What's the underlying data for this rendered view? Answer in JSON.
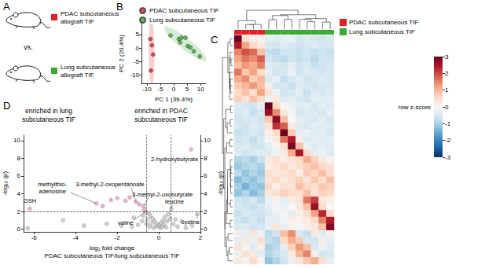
{
  "schematic": {
    "panel": "A",
    "separator": "vs.",
    "groups": [
      {
        "label": "PDAC subcutaneous\nallograft TIF",
        "color": "#e41e26"
      },
      {
        "label": "Lung subcutaneous\nallograft TIF",
        "color": "#3aaa35"
      }
    ]
  },
  "chart_data": [
    {
      "panel": "B",
      "type": "scatter",
      "xlabel": "PC 1 (39.4%)",
      "ylabel": "PC 2 (20.4%)",
      "xlim": [
        -12,
        12
      ],
      "xticks": [
        -10,
        -5,
        0,
        5,
        10
      ],
      "ylim": [
        -13,
        9
      ],
      "yticks": [
        -10,
        -5,
        0,
        5
      ],
      "grid": false,
      "legend": "top",
      "series": [
        {
          "name": "PDAC subcutaneous TIF",
          "color": "#e41e26",
          "values": [
            [
              -8.7,
              3.3
            ],
            [
              -8.1,
              1.0
            ],
            [
              -7.7,
              -2.4
            ],
            [
              -8.5,
              -8.3
            ]
          ]
        },
        {
          "name": "Lung subcutaneous TIF",
          "color": "#3aaa35",
          "values": [
            [
              -1.2,
              4.6
            ],
            [
              1.9,
              3.3
            ],
            [
              2.9,
              3.8
            ],
            [
              4.4,
              3.8
            ],
            [
              2.4,
              2.1
            ],
            [
              5.2,
              0.7
            ],
            [
              6.2,
              0.2
            ],
            [
              7.5,
              -1.2
            ],
            [
              9.7,
              -3.1
            ]
          ]
        }
      ]
    },
    {
      "panel": "C",
      "type": "heatmap",
      "legend": "right",
      "series": [
        {
          "name": "PDAC subcutaneous TIF",
          "color": "#e41e26"
        },
        {
          "name": "Lung subcutaneous TIF",
          "color": "#3aaa35"
        }
      ],
      "column_groups": [
        "PDAC subcutaneous TIF",
        "PDAC subcutaneous TIF",
        "PDAC subcutaneous TIF",
        "PDAC subcutaneous TIF",
        "Lung subcutaneous TIF",
        "Lung subcutaneous TIF",
        "Lung subcutaneous TIF",
        "Lung subcutaneous TIF",
        "Lung subcutaneous TIF",
        "Lung subcutaneous TIF",
        "Lung subcutaneous TIF",
        "Lung subcutaneous TIF",
        "Lung subcutaneous TIF"
      ],
      "colorbar": {
        "label": "row z-score",
        "range": [
          -3,
          3
        ],
        "ticks": [
          -3,
          -2,
          -1,
          0,
          1,
          2,
          3
        ]
      },
      "values": [
        [
          3.0,
          0.4,
          0.2,
          0.1,
          -0.3,
          -0.4,
          -0.3,
          -0.2,
          -0.5,
          -0.4,
          -0.5,
          -0.6,
          -0.5
        ],
        [
          2.4,
          1.2,
          0.6,
          0.3,
          -0.5,
          -0.6,
          -0.4,
          -0.5,
          -0.6,
          -0.5,
          -0.4,
          -0.5,
          -0.5
        ],
        [
          1.5,
          1.9,
          1.7,
          0.9,
          -0.7,
          -0.8,
          -0.6,
          -0.6,
          -0.7,
          -0.6,
          -0.7,
          -0.6,
          -0.7
        ],
        [
          1.2,
          1.6,
          1.4,
          1.8,
          -0.6,
          -0.7,
          -0.8,
          -0.6,
          -0.7,
          -0.6,
          -0.8,
          -0.6,
          -0.6
        ],
        [
          0.9,
          1.3,
          1.1,
          1.5,
          -0.4,
          -0.5,
          -0.6,
          -0.3,
          -0.6,
          -0.5,
          -0.7,
          -0.6,
          -0.5
        ],
        [
          1.6,
          0.8,
          1.2,
          0.6,
          -0.3,
          -0.6,
          -0.5,
          -0.2,
          -0.6,
          -0.4,
          -0.5,
          -0.6,
          -0.5
        ],
        [
          1.1,
          1.4,
          0.7,
          1.0,
          -0.4,
          -0.3,
          -0.7,
          -0.5,
          -0.4,
          -0.6,
          -0.5,
          -0.4,
          -0.5
        ],
        [
          0.8,
          1.0,
          1.3,
          0.9,
          0.2,
          -0.6,
          -0.5,
          -0.7,
          -0.4,
          -0.5,
          -0.6,
          -0.5,
          -0.5
        ],
        [
          0.6,
          0.9,
          0.5,
          1.2,
          0.4,
          -0.2,
          -0.6,
          -0.5,
          -0.3,
          -0.7,
          -0.4,
          -0.5,
          -0.4
        ],
        [
          0.7,
          0.4,
          0.9,
          0.6,
          -0.2,
          0.3,
          -0.4,
          -0.3,
          -0.5,
          -0.6,
          -0.3,
          -0.4,
          -0.3
        ],
        [
          -0.4,
          -0.5,
          -0.6,
          -0.3,
          3.0,
          0.6,
          0.1,
          -0.2,
          -0.4,
          -0.3,
          -0.5,
          -0.3,
          -0.4
        ],
        [
          -0.5,
          -0.4,
          -0.7,
          -0.5,
          2.6,
          1.4,
          0.3,
          -0.1,
          -0.5,
          -0.4,
          -0.4,
          -0.5,
          -0.3
        ],
        [
          -0.6,
          -0.5,
          -0.5,
          -0.6,
          0.8,
          2.7,
          0.9,
          0.0,
          -0.3,
          -0.4,
          -0.5,
          -0.3,
          -0.5
        ],
        [
          -0.5,
          -0.6,
          -0.4,
          -0.5,
          0.4,
          2.2,
          1.8,
          0.2,
          -0.4,
          -0.5,
          -0.3,
          -0.4,
          -0.4
        ],
        [
          -0.7,
          -0.6,
          -0.5,
          -0.6,
          0.2,
          0.6,
          2.9,
          0.8,
          -0.3,
          -0.2,
          -0.4,
          -0.3,
          -0.5
        ],
        [
          -0.6,
          -0.5,
          -0.7,
          -0.5,
          -0.1,
          0.3,
          1.6,
          2.4,
          0.2,
          -0.4,
          -0.3,
          -0.4,
          -0.3
        ],
        [
          -0.5,
          -0.4,
          -0.6,
          -0.6,
          -0.3,
          0.1,
          0.5,
          2.8,
          0.9,
          -0.2,
          -0.4,
          -0.3,
          -0.4
        ],
        [
          -0.4,
          -0.6,
          -0.5,
          -0.4,
          -0.4,
          -0.2,
          0.3,
          1.1,
          2.5,
          0.6,
          -0.3,
          -0.2,
          -0.4
        ],
        [
          -0.9,
          -0.8,
          -1.0,
          -0.7,
          0.3,
          0.5,
          0.2,
          0.4,
          0.6,
          1.1,
          0.7,
          0.3,
          0.1
        ],
        [
          -1.1,
          -0.9,
          -0.8,
          -1.0,
          0.2,
          0.4,
          0.6,
          0.3,
          0.5,
          0.7,
          0.9,
          0.6,
          0.4
        ],
        [
          -0.8,
          -1.2,
          -0.9,
          -1.1,
          0.5,
          0.3,
          0.4,
          0.6,
          0.2,
          0.8,
          0.6,
          0.9,
          0.5
        ],
        [
          -1.3,
          -1.0,
          -1.2,
          -0.9,
          0.4,
          0.6,
          0.3,
          0.5,
          0.7,
          0.4,
          0.8,
          0.5,
          0.9
        ],
        [
          -1.0,
          -1.4,
          -1.1,
          -1.2,
          0.6,
          0.2,
          0.5,
          0.4,
          0.9,
          0.6,
          0.5,
          0.8,
          0.7
        ],
        [
          -1.2,
          -0.9,
          -1.3,
          -1.0,
          0.3,
          0.5,
          0.7,
          0.6,
          0.4,
          0.9,
          0.4,
          0.7,
          0.6
        ],
        [
          -0.6,
          -0.7,
          -0.5,
          -0.8,
          -0.2,
          0.1,
          -0.3,
          0.2,
          0.4,
          1.6,
          2.1,
          0.3,
          0.2
        ],
        [
          -0.5,
          -0.6,
          -0.7,
          -0.5,
          -0.3,
          -0.1,
          -0.2,
          0.0,
          0.3,
          0.9,
          2.6,
          0.6,
          0.0
        ],
        [
          -0.7,
          -0.5,
          -0.6,
          -0.6,
          -0.4,
          -0.2,
          0.1,
          -0.3,
          0.2,
          0.5,
          1.2,
          2.3,
          0.6
        ],
        [
          -0.6,
          -0.7,
          -0.5,
          -0.7,
          -0.3,
          -0.3,
          -0.1,
          0.2,
          0.1,
          0.3,
          0.6,
          1.5,
          2.4
        ],
        [
          -0.5,
          -0.4,
          -0.6,
          -0.5,
          -0.2,
          0.4,
          -0.3,
          0.1,
          -0.1,
          0.2,
          0.3,
          0.9,
          2.8
        ],
        [
          0.2,
          -0.3,
          0.4,
          -0.2,
          -0.8,
          -0.6,
          0.9,
          1.4,
          -0.5,
          -0.7,
          0.3,
          -0.4,
          0.1
        ],
        [
          -0.3,
          0.3,
          -0.2,
          0.5,
          -0.7,
          -0.9,
          0.6,
          1.1,
          0.8,
          -0.5,
          -0.6,
          0.2,
          -0.3
        ],
        [
          0.4,
          0.1,
          -0.4,
          0.2,
          -1.0,
          -0.8,
          -0.3,
          0.7,
          1.3,
          0.9,
          -0.5,
          -0.2,
          -0.4
        ],
        [
          -0.2,
          0.5,
          0.3,
          -0.4,
          -0.9,
          -0.7,
          -0.5,
          0.3,
          1.0,
          1.5,
          0.2,
          -0.6,
          -0.5
        ],
        [
          0.3,
          -0.1,
          0.6,
          0.1,
          -1.2,
          -0.9,
          -0.6,
          -0.2,
          0.4,
          0.8,
          1.1,
          0.5,
          -0.3
        ]
      ]
    },
    {
      "panel": "D",
      "type": "scatter",
      "xlabel": "log₂ fold change\nPDAC subcutaneous TIF/lung subcutaneous TIF",
      "ylabel": "-log₁₀ (p)",
      "y2label": "-log₁₀ (p)",
      "xlim": [
        -6.5,
        2
      ],
      "xticks": [
        -6,
        -4,
        -2,
        0,
        2
      ],
      "ylim": [
        -0.3,
        10.6
      ],
      "yticks": [
        0,
        2,
        4,
        6,
        8,
        10
      ],
      "y2lim": [
        -0.3,
        10.6
      ],
      "y2ticks": [
        0,
        2,
        4,
        6,
        8,
        10
      ],
      "grid": false,
      "region_labels": [
        "enriched in lung\nsubcutaneous TIF",
        "enriched in PDAC\nsubcutaneous TIF"
      ],
      "reference_lines": {
        "x": [
          -0.585,
          0.585
        ],
        "y": [
          2
        ]
      },
      "series": [
        {
          "color": "#c4c4c4",
          "values": [
            [
              -0.5,
              1.8
            ],
            [
              -0.4,
              1.5
            ],
            [
              -0.3,
              1.2
            ],
            [
              -0.2,
              0.9
            ],
            [
              -0.1,
              0.6
            ],
            [
              0,
              0.4
            ],
            [
              0.1,
              0.7
            ],
            [
              0.2,
              1.0
            ],
            [
              0.3,
              1.4
            ],
            [
              0.45,
              1.7
            ],
            [
              -0.55,
              1.1
            ],
            [
              -0.35,
              0.7
            ],
            [
              -0.15,
              0.3
            ],
            [
              0.05,
              0.15
            ],
            [
              0.25,
              0.5
            ],
            [
              0.4,
              0.9
            ],
            [
              0.55,
              1.2
            ],
            [
              -0.6,
              0.6
            ],
            [
              -0.45,
              0.3
            ],
            [
              -0.25,
              0.15
            ],
            [
              0.15,
              0.25
            ],
            [
              0.35,
              0.2
            ],
            [
              -0.8,
              0.9
            ],
            [
              -1.0,
              0.5
            ],
            [
              -1.3,
              0.3
            ],
            [
              -1.8,
              0.4
            ],
            [
              -2.5,
              0.6
            ],
            [
              -3.6,
              0.4
            ],
            [
              -6.3,
              0.1
            ],
            [
              0.7,
              0.6
            ],
            [
              0.9,
              0.3
            ],
            [
              1.3,
              0.15
            ],
            [
              1.6,
              0.4
            ],
            [
              0.6,
              2.3
            ],
            [
              -0.65,
              1.95
            ],
            [
              1.85,
              1.7
            ],
            [
              -0.75,
              1.5
            ],
            [
              0.8,
              1.1
            ],
            [
              -1.2,
              1.3
            ],
            [
              -4.6,
              1.0
            ],
            [
              1.1,
              0.9
            ]
          ]
        },
        {
          "color": "#e8a0cc",
          "values": [
            [
              -6.2,
              2.3
            ],
            [
              -3.0,
              2.9
            ],
            [
              -2.7,
              2.6
            ],
            [
              -2.3,
              3.3
            ],
            [
              -2.0,
              3.5
            ],
            [
              -1.6,
              3.2
            ],
            [
              -1.4,
              3.6
            ],
            [
              -1.1,
              3.1
            ],
            [
              -0.95,
              2.8
            ],
            [
              -0.75,
              2.6
            ],
            [
              -0.7,
              2.2
            ],
            [
              1.55,
              9.0
            ]
          ]
        }
      ],
      "annotations": [
        {
          "text": "GSH",
          "x": -6.2,
          "y": 2.3
        },
        {
          "text": "methylthio-\nadenosine",
          "x": -3.0,
          "y": 2.9
        },
        {
          "text": "3-methyl-2-oxopentanoate",
          "x": -1.1,
          "y": 3.1
        },
        {
          "text": "3-methyl-2-oxobutyrate",
          "x": -0.7,
          "y": 2.65
        },
        {
          "text": "2-hydroxybutyrate",
          "x": 1.55,
          "y": 9.0
        },
        {
          "text": "valine",
          "x": -0.65,
          "y": 1.95
        },
        {
          "text": "leucine",
          "x": 0.6,
          "y": 2.3
        },
        {
          "text": "cystine",
          "x": 1.85,
          "y": 1.7
        }
      ]
    }
  ]
}
